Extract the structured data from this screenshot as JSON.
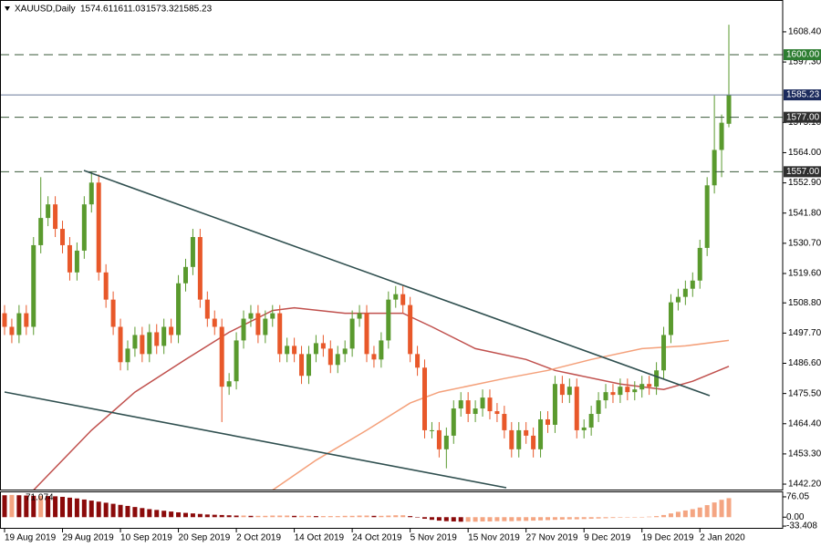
{
  "chart_data": {
    "type": "candlestick",
    "symbol": "XAUUSD,Daily",
    "up_color": "#5a9a2e",
    "down_color": "#e8582a",
    "categories": [
      "19 Aug 2019",
      null,
      null,
      null,
      null,
      null,
      null,
      null,
      "29 Aug 2019",
      null,
      null,
      null,
      null,
      null,
      null,
      null,
      "10 Sep 2019",
      null,
      null,
      null,
      null,
      null,
      null,
      null,
      "20 Sep 2019",
      null,
      null,
      null,
      null,
      null,
      null,
      null,
      "2 Oct 2019",
      null,
      null,
      null,
      null,
      null,
      null,
      null,
      "14 Oct 2019",
      null,
      null,
      null,
      null,
      null,
      null,
      null,
      "24 Oct 2019",
      null,
      null,
      null,
      null,
      null,
      null,
      null,
      "5 Nov 2019",
      null,
      null,
      null,
      null,
      null,
      null,
      null,
      "15 Nov 2019",
      null,
      null,
      null,
      null,
      null,
      null,
      null,
      "27 Nov 2019",
      null,
      null,
      null,
      null,
      null,
      null,
      null,
      "9 Dec 2019",
      null,
      null,
      null,
      null,
      null,
      null,
      null,
      "19 Dec 2019",
      null,
      null,
      null,
      null,
      null,
      null,
      null,
      "2 Jan 2020",
      null,
      null,
      null,
      null
    ],
    "open": [
      1505,
      1500,
      1497,
      1505,
      1500,
      1530,
      1540,
      1545,
      1536,
      1530,
      1520,
      1528,
      1545,
      1553,
      1520,
      1510,
      1500,
      1487,
      1492,
      1497,
      1490,
      1498,
      1493,
      1500,
      1497,
      1516,
      1522,
      1533,
      1510,
      1503,
      1500,
      1478,
      1480,
      1495,
      1503,
      1505,
      1497,
      1503,
      1505,
      1490,
      1493,
      1490,
      1482,
      1490,
      1494,
      1492,
      1486,
      1490,
      1492,
      1503,
      1505,
      1490,
      1488,
      1495,
      1510,
      1512,
      1508,
      1490,
      1485,
      1462,
      1462,
      1455,
      1460,
      1470,
      1473,
      1468,
      1470,
      1474,
      1469,
      1468,
      1462,
      1455,
      1462,
      1460,
      1455,
      1466,
      1464,
      1479,
      1475,
      1478,
      1462,
      1463,
      1468,
      1473,
      1476,
      1475,
      1478,
      1476,
      1477,
      1479,
      1478,
      1484,
      1497,
      1509,
      1511,
      1514,
      1517,
      1529,
      1552,
      1565,
      1574.61
    ],
    "high": [
      1508,
      1503,
      1508,
      1508,
      1533,
      1555,
      1548,
      1548,
      1539,
      1533,
      1531,
      1548,
      1557,
      1556,
      1523,
      1513,
      1503,
      1495,
      1500,
      1500,
      1501,
      1501,
      1503,
      1503,
      1519,
      1525,
      1536,
      1536,
      1513,
      1506,
      1503,
      1483,
      1498,
      1506,
      1508,
      1508,
      1506,
      1508,
      1508,
      1496,
      1496,
      1493,
      1493,
      1497,
      1497,
      1495,
      1493,
      1495,
      1506,
      1508,
      1508,
      1493,
      1498,
      1513,
      1515,
      1515,
      1511,
      1493,
      1488,
      1465,
      1465,
      1463,
      1473,
      1476,
      1476,
      1473,
      1477,
      1477,
      1472,
      1471,
      1465,
      1465,
      1465,
      1463,
      1469,
      1469,
      1482,
      1482,
      1481,
      1481,
      1466,
      1471,
      1476,
      1479,
      1479,
      1481,
      1481,
      1480,
      1482,
      1482,
      1487,
      1500,
      1512,
      1514,
      1517,
      1520,
      1532,
      1555,
      1585,
      1578,
      1611.03
    ],
    "low": [
      1497,
      1494,
      1494,
      1497,
      1497,
      1527,
      1537,
      1533,
      1527,
      1517,
      1517,
      1525,
      1542,
      1517,
      1507,
      1497,
      1484,
      1484,
      1489,
      1487,
      1487,
      1490,
      1490,
      1494,
      1494,
      1513,
      1519,
      1507,
      1500,
      1497,
      1465,
      1475,
      1477,
      1492,
      1500,
      1494,
      1494,
      1500,
      1487,
      1487,
      1487,
      1479,
      1479,
      1487,
      1489,
      1483,
      1483,
      1487,
      1489,
      1500,
      1487,
      1485,
      1485,
      1492,
      1507,
      1505,
      1487,
      1482,
      1459,
      1459,
      1452,
      1448,
      1457,
      1467,
      1465,
      1465,
      1467,
      1466,
      1465,
      1459,
      1452,
      1452,
      1457,
      1452,
      1452,
      1461,
      1461,
      1472,
      1472,
      1459,
      1459,
      1460,
      1465,
      1470,
      1472,
      1472,
      1473,
      1473,
      1474,
      1475,
      1475,
      1481,
      1494,
      1506,
      1508,
      1511,
      1514,
      1526,
      1549,
      1555,
      1573.32
    ],
    "close": [
      1500,
      1497,
      1505,
      1500,
      1530,
      1540,
      1545,
      1536,
      1530,
      1520,
      1528,
      1545,
      1553,
      1520,
      1510,
      1500,
      1487,
      1492,
      1497,
      1490,
      1498,
      1493,
      1500,
      1497,
      1516,
      1522,
      1533,
      1510,
      1503,
      1500,
      1478,
      1480,
      1495,
      1503,
      1505,
      1497,
      1503,
      1505,
      1490,
      1493,
      1490,
      1482,
      1490,
      1494,
      1492,
      1486,
      1490,
      1492,
      1503,
      1505,
      1490,
      1488,
      1495,
      1510,
      1512,
      1508,
      1490,
      1485,
      1462,
      1462,
      1455,
      1460,
      1470,
      1473,
      1468,
      1470,
      1474,
      1469,
      1468,
      1462,
      1455,
      1462,
      1460,
      1455,
      1466,
      1464,
      1479,
      1475,
      1478,
      1462,
      1463,
      1468,
      1473,
      1476,
      1475,
      1478,
      1476,
      1477,
      1479,
      1478,
      1484,
      1497,
      1509,
      1511,
      1514,
      1517,
      1529,
      1552,
      1565,
      1575,
      1585.23
    ],
    "series": [
      {
        "color": "#c0504d",
        "x": [
          4,
          12,
          18,
          25,
          31,
          37,
          40,
          47,
          55,
          59,
          65,
          72,
          76,
          85,
          91,
          95,
          100
        ],
        "values": [
          1440,
          1462,
          1476,
          1488,
          1498,
          1506,
          1507,
          1505,
          1505,
          1500,
          1492,
          1488,
          1484,
          1479,
          1477,
          1480,
          1485.5
        ]
      },
      {
        "color": "#f4a07a",
        "x": [
          37,
          43,
          50,
          56,
          60,
          69,
          75,
          81,
          88,
          94,
          100
        ],
        "values": [
          1440,
          1451,
          1462,
          1472,
          1476,
          1481,
          1484,
          1488,
          1492,
          1493,
          1495
        ]
      }
    ],
    "levels": [
      {
        "value": 1600,
        "label": "1600.00",
        "color": "#2e7d32",
        "style": "dashed"
      },
      {
        "value": 1585.23,
        "color": "#1b2a5c",
        "style": "solid"
      },
      {
        "value": 1577,
        "label": "1577.00",
        "color": "#2f2f2f",
        "style": "dashed"
      },
      {
        "value": 1557,
        "label": "1557.00",
        "color": "#2f2f2f",
        "style": "dashed"
      }
    ],
    "ylim": [
      1440.2,
      1620.1
    ],
    "yticks": [
      {
        "value": 1442.2,
        "label": "1442.20"
      },
      {
        "value": 1453.3,
        "label": "1453.30"
      },
      {
        "value": 1464.4,
        "label": "1464.40"
      },
      {
        "value": 1475.5,
        "label": "1475.50"
      },
      {
        "value": 1486.6,
        "label": "1486.60"
      },
      {
        "value": 1497.7,
        "label": "1497.70"
      },
      {
        "value": 1508.8,
        "label": "1508.80"
      },
      {
        "value": 1519.6,
        "label": "1519.60"
      },
      {
        "value": 1530.7,
        "label": "1530.70"
      },
      {
        "value": 1541.8,
        "label": "1541.80"
      },
      {
        "value": 1552.9,
        "label": "1552.90"
      },
      {
        "value": 1564,
        "label": "1564.00"
      },
      {
        "value": 1575.1,
        "label": "1575.10"
      },
      {
        "value": 1597.3,
        "label": "1597.30"
      },
      {
        "value": 1608.4,
        "label": "1608.40"
      }
    ],
    "oscillator": {
      "type": "bar",
      "rise_color": "#f4a582",
      "fall_color": "#8b0a0a",
      "values": [
        82,
        83,
        82,
        81,
        80,
        80,
        79,
        78,
        76,
        73,
        70,
        66,
        62,
        58,
        54,
        50,
        46,
        42,
        38,
        34,
        30,
        27,
        24,
        21,
        18,
        16,
        14,
        12,
        10,
        9,
        8,
        7,
        6,
        6,
        5,
        5,
        5,
        6,
        6,
        6,
        5,
        5,
        5,
        4,
        4,
        4,
        4,
        5,
        5,
        6,
        6,
        5,
        5,
        6,
        7,
        7,
        4,
        0,
        -6,
        -10,
        -13,
        -15,
        -16,
        -17,
        -17,
        -17,
        -16,
        -16,
        -15,
        -15,
        -15,
        -14,
        -14,
        -13,
        -12,
        -11,
        -10,
        -9,
        -8,
        -8,
        -7,
        -6,
        -5,
        -4,
        -3,
        -2,
        -1,
        0,
        1,
        2,
        4,
        8,
        14,
        20,
        25,
        30,
        36,
        45,
        55,
        65,
        71.074
      ],
      "ylim": [
        -40,
        93
      ],
      "yticks": [
        76.05,
        {
          "value": 0,
          "label": "0.00"
        },
        -33.408
      ]
    }
  }
}
